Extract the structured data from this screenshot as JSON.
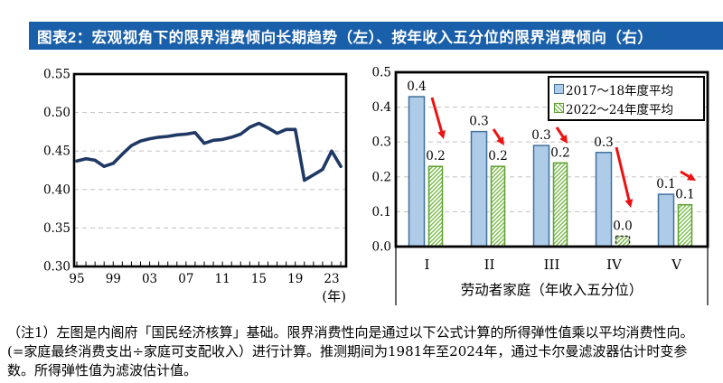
{
  "header": {
    "title": "图表2：宏观视角下的限界消费倾向长期趋势（左）、按年收入五分位的限界消费倾向（右）",
    "bg_color": "#1A5FA9",
    "text_color": "#FFFFFF"
  },
  "colors": {
    "line": "#1F3864",
    "grid": "#C9C9C9",
    "axis": "#000000",
    "bar_blue_fill": "#AECBE8",
    "bar_blue_stroke": "#41719C",
    "bar_green_stroke": "#5EA032",
    "bar_green_hatch": "#7CBB4E",
    "arrow_red": "#EE1111"
  },
  "chart_data": [
    {
      "type": "line",
      "title": "宏观视角下的限界消费倾向长期趋势",
      "x": [
        1995,
        1996,
        1997,
        1998,
        1999,
        2000,
        2001,
        2002,
        2003,
        2004,
        2005,
        2006,
        2007,
        2008,
        2009,
        2010,
        2011,
        2012,
        2013,
        2014,
        2015,
        2016,
        2017,
        2018,
        2019,
        2020,
        2021,
        2022,
        2023,
        2024
      ],
      "values": [
        0.437,
        0.44,
        0.438,
        0.43,
        0.434,
        0.446,
        0.457,
        0.463,
        0.466,
        0.468,
        0.469,
        0.471,
        0.472,
        0.474,
        0.46,
        0.464,
        0.465,
        0.468,
        0.472,
        0.481,
        0.486,
        0.48,
        0.473,
        0.478,
        0.478,
        0.412,
        0.419,
        0.426,
        0.45,
        0.43
      ],
      "xlabel": "(年)",
      "ylim": [
        0.3,
        0.55
      ],
      "y_tick_labels": [
        "0.55",
        "0.50",
        "0.45",
        "0.40",
        "0.35",
        "0.30"
      ],
      "y_tick_values": [
        0.55,
        0.5,
        0.45,
        0.4,
        0.35,
        0.3
      ],
      "x_tick_labels": [
        "95",
        "99",
        "03",
        "07",
        "11",
        "15",
        "19",
        "23"
      ],
      "x_tick_years": [
        1995,
        1999,
        2003,
        2007,
        2011,
        2015,
        2019,
        2023
      ],
      "grid": "dashed"
    },
    {
      "type": "bar",
      "title": "按年收入五分位的限界消费倾向",
      "categories": [
        "I",
        "II",
        "III",
        "IV",
        "V"
      ],
      "series": [
        {
          "name": "2017～18年度平均",
          "values": [
            0.43,
            0.33,
            0.29,
            0.27,
            0.15
          ],
          "labels": [
            "0.4",
            "0.3",
            "0.3",
            "0.3",
            "0.1"
          ],
          "style": "blue"
        },
        {
          "name": "2022～24年度平均",
          "values": [
            0.23,
            0.23,
            0.24,
            0.03,
            0.12
          ],
          "labels": [
            "0.2",
            "0.2",
            "0.2",
            "0.0",
            "0.1"
          ],
          "style": "green-hatch",
          "dashed_outline_indices": [
            3
          ]
        }
      ],
      "xlabel": "劳动者家庭（年收入五分位）",
      "ylim": [
        0.0,
        0.5
      ],
      "y_tick_labels": [
        "0.5",
        "0.4",
        "0.3",
        "0.2",
        "0.1",
        "0.0"
      ],
      "y_tick_values": [
        0.5,
        0.4,
        0.3,
        0.2,
        0.1,
        0.0
      ],
      "legend_position": "top-right",
      "grid": "dashed",
      "arrows": [
        [
          78,
          38,
          91,
          84
        ],
        [
          146,
          73,
          158,
          91
        ],
        [
          216,
          71,
          228,
          89
        ],
        [
          282,
          93,
          298,
          160
        ],
        [
          353,
          120,
          370,
          130
        ]
      ]
    }
  ],
  "notes": [
    "（注1）左图是内阁府「国民经济核算」基础。限界消费性向是通过以下公式计算的所得弹性值乘以平均消费性向。",
    "(=家庭最终消费支出÷家庭可支配收入）进行计算。推测期间为1981年至2024年，通过卡尔曼滤波器估计时变参",
    "数。所得弹性值为滤波估计值。"
  ]
}
